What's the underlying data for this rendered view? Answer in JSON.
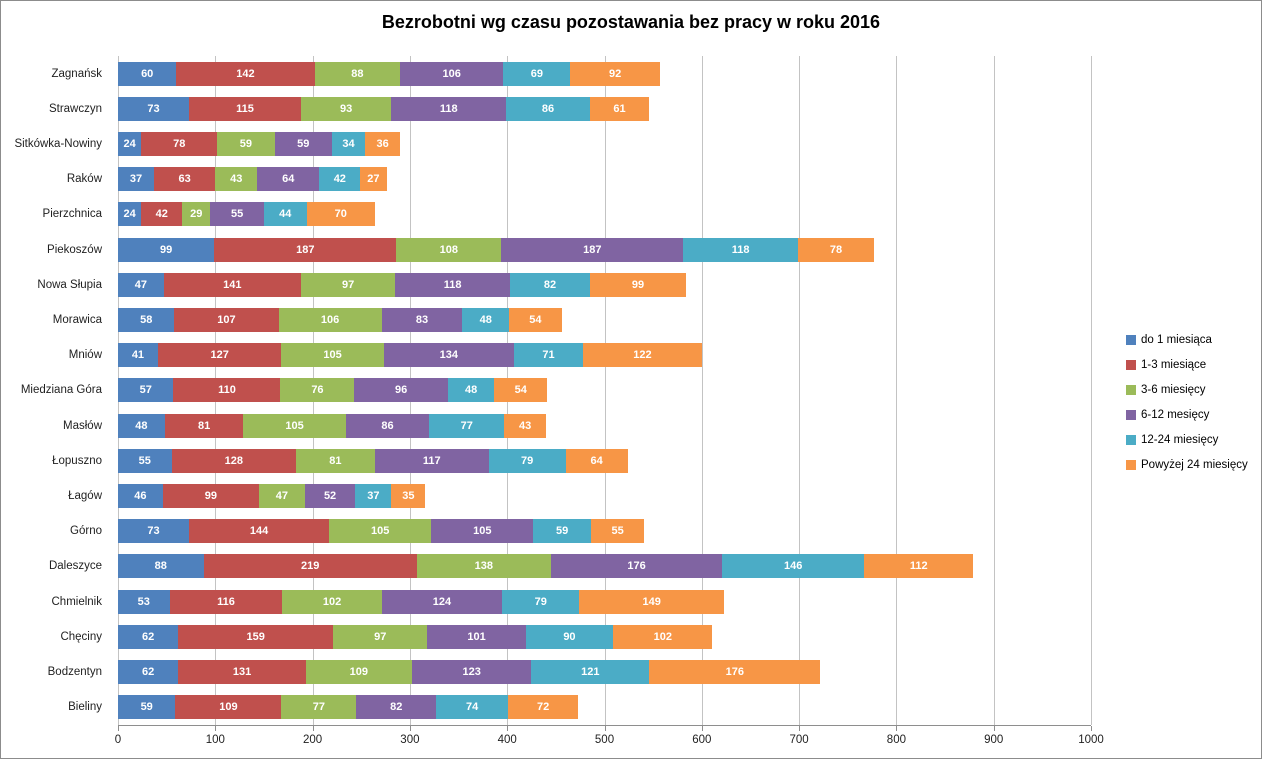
{
  "chart_data": {
    "type": "bar",
    "orientation": "horizontal",
    "stacked": true,
    "title": "Bezrobotni wg czasu pozostawania bez pracy w roku 2016",
    "categories": [
      "Zagnańsk",
      "Strawczyn",
      "Sitkówka-Nowiny",
      "Raków",
      "Pierzchnica",
      "Piekoszów",
      "Nowa Słupia",
      "Morawica",
      "Mniów",
      "Miedziana Góra",
      "Masłów",
      "Łopuszno",
      "Łagów",
      "Górno",
      "Daleszyce",
      "Chmielnik",
      "Chęciny",
      "Bodzentyn",
      "Bieliny"
    ],
    "series": [
      {
        "name": "do 1 miesiąca",
        "color": "#4F81BD",
        "values": [
          60,
          73,
          24,
          37,
          24,
          99,
          47,
          58,
          41,
          57,
          48,
          55,
          46,
          73,
          88,
          53,
          62,
          62,
          59
        ]
      },
      {
        "name": "1-3 miesiące",
        "color": "#C0504D",
        "values": [
          142,
          115,
          78,
          63,
          42,
          187,
          141,
          107,
          127,
          110,
          81,
          128,
          99,
          144,
          219,
          116,
          159,
          131,
          109
        ]
      },
      {
        "name": "3-6 miesięcy",
        "color": "#9BBB59",
        "values": [
          88,
          93,
          59,
          43,
          29,
          108,
          97,
          106,
          105,
          76,
          105,
          81,
          47,
          105,
          138,
          102,
          97,
          109,
          77
        ]
      },
      {
        "name": "6-12 mesięcy",
        "color": "#8064A2",
        "values": [
          106,
          118,
          59,
          64,
          55,
          187,
          118,
          83,
          134,
          96,
          86,
          117,
          52,
          105,
          176,
          124,
          101,
          123,
          82
        ]
      },
      {
        "name": "12-24 miesięcy",
        "color": "#4BACC6",
        "values": [
          69,
          86,
          34,
          42,
          44,
          118,
          82,
          48,
          71,
          48,
          77,
          79,
          37,
          59,
          146,
          79,
          90,
          121,
          74
        ]
      },
      {
        "name": "Powyżej 24 miesięcy",
        "color": "#F79646",
        "values": [
          92,
          61,
          36,
          27,
          70,
          78,
          99,
          54,
          122,
          54,
          43,
          64,
          35,
          55,
          112,
          149,
          102,
          176,
          72
        ]
      }
    ],
    "xlim": [
      0,
      1000
    ],
    "x_ticks": [
      0,
      100,
      200,
      300,
      400,
      500,
      600,
      700,
      800,
      900,
      1000
    ],
    "grid": "vertical",
    "legend_position": "right",
    "value_labels": "inside-white",
    "colors": {
      "gridline": "#C3C3C3",
      "axis_line": "#8E8E8E",
      "text": "#1F1F1F",
      "value_label_text": "#FFFFFF",
      "border": "#8C8C8C"
    }
  }
}
